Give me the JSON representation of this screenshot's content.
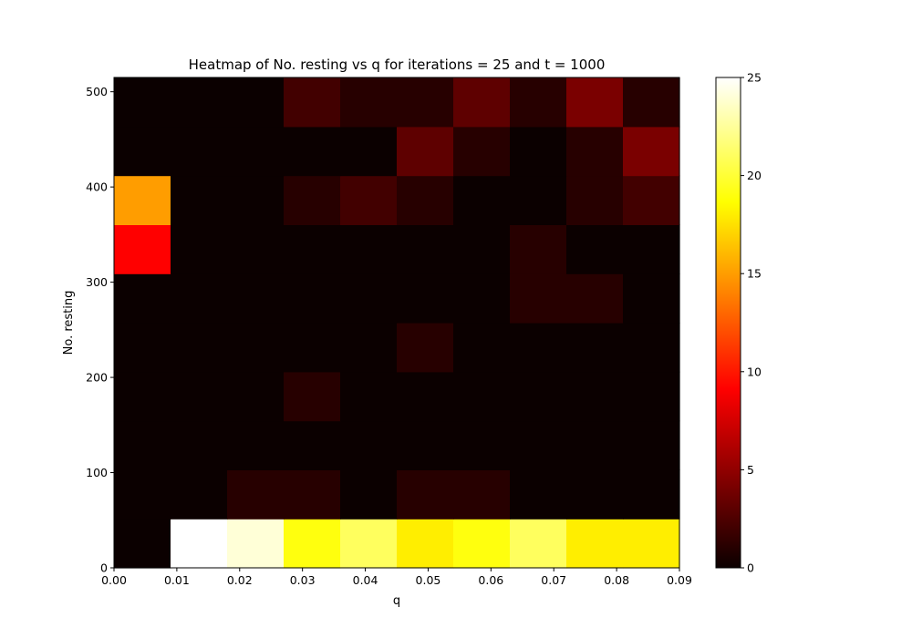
{
  "chart_data": {
    "type": "heatmap",
    "title": "Heatmap of No. resting vs q for iterations = 25 and t = 1000",
    "xlabel": "q",
    "ylabel": "No. resting",
    "xlim": [
      0,
      0.09
    ],
    "ylim": [
      0,
      515
    ],
    "x_ticks": [
      0.0,
      0.01,
      0.02,
      0.03,
      0.04,
      0.05,
      0.06,
      0.07,
      0.08,
      0.09
    ],
    "x_tick_labels": [
      "0.00",
      "0.01",
      "0.02",
      "0.03",
      "0.04",
      "0.05",
      "0.06",
      "0.07",
      "0.08",
      "0.09"
    ],
    "y_ticks": [
      0,
      100,
      200,
      300,
      400,
      500
    ],
    "y_tick_labels": [
      "0",
      "100",
      "200",
      "300",
      "400",
      "500"
    ],
    "x_bin_edges": [
      0.0,
      0.009,
      0.018,
      0.027,
      0.036,
      0.045,
      0.054,
      0.063,
      0.072,
      0.081,
      0.09
    ],
    "y_bin_edges": [
      0,
      51.5,
      103,
      154.5,
      206,
      257.5,
      309,
      360.5,
      412,
      463.5,
      515
    ],
    "counts": [
      [
        0,
        25,
        24,
        19,
        21,
        18,
        19,
        21,
        18,
        18
      ],
      [
        0,
        0,
        1,
        1,
        0,
        1,
        1,
        0,
        0,
        0
      ],
      [
        0,
        0,
        0,
        0,
        0,
        0,
        0,
        0,
        0,
        0
      ],
      [
        0,
        0,
        0,
        1,
        0,
        0,
        0,
        0,
        0,
        0
      ],
      [
        0,
        0,
        0,
        0,
        0,
        1,
        0,
        0,
        0,
        0
      ],
      [
        0,
        0,
        0,
        0,
        0,
        0,
        0,
        1,
        1,
        0
      ],
      [
        9,
        0,
        0,
        0,
        0,
        0,
        0,
        1,
        0,
        0
      ],
      [
        15,
        0,
        0,
        1,
        2,
        1,
        0,
        0,
        1,
        2
      ],
      [
        0,
        0,
        0,
        0,
        0,
        3,
        1,
        0,
        1,
        4
      ],
      [
        0,
        0,
        0,
        2,
        1,
        1,
        3,
        1,
        4,
        1
      ]
    ],
    "colormap": "hot",
    "colorbar": {
      "range": [
        0,
        25
      ],
      "ticks": [
        0,
        5,
        10,
        15,
        20,
        25
      ],
      "tick_labels": [
        "0",
        "5",
        "10",
        "15",
        "20",
        "25"
      ]
    }
  }
}
